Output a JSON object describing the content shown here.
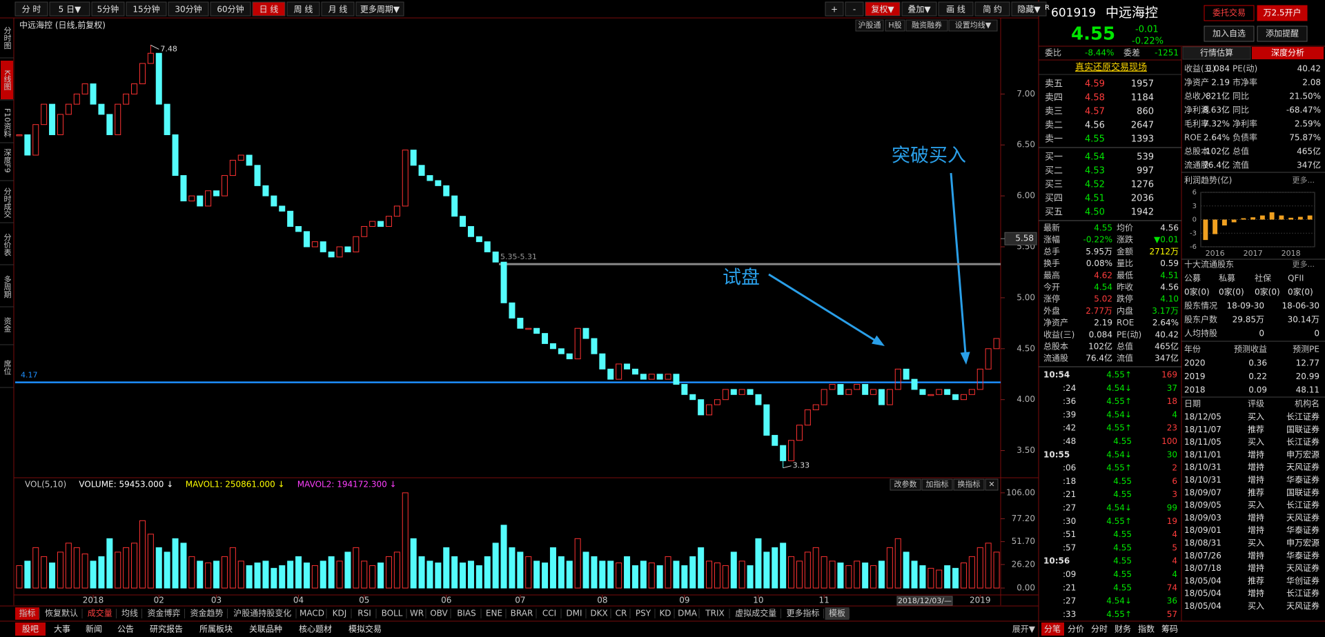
{
  "toolbar": {
    "left": [
      "分 时",
      "5 日▼",
      "5分钟",
      "15分钟",
      "30分钟",
      "60分钟",
      "日 线",
      "周 线",
      "月 线",
      "更多周期▼"
    ],
    "right": [
      "+",
      "-",
      "复权▼",
      "叠加▼",
      "画 线",
      "简 约",
      "隐藏▼"
    ]
  },
  "sidebar": [
    "分时图",
    "K线图",
    "F10资料",
    "深度F9",
    "分时成交",
    "分价表",
    "多周期",
    "资金",
    "席位"
  ],
  "chart_data": {
    "type": "candlestick",
    "title": "中远海控 (日线,前复权)",
    "categories": [
      null,
      null,
      null,
      null,
      null,
      null,
      null,
      null,
      null,
      "2018",
      null,
      null,
      null,
      null,
      null,
      null,
      null,
      "02",
      null,
      null,
      null,
      null,
      null,
      null,
      "03",
      null,
      null,
      null,
      null,
      null,
      null,
      null,
      null,
      null,
      "04",
      null,
      null,
      null,
      null,
      null,
      null,
      null,
      "05",
      null,
      null,
      null,
      null,
      null,
      null,
      null,
      null,
      null,
      "06",
      null,
      null,
      null,
      null,
      null,
      null,
      null,
      null,
      "07",
      null,
      null,
      null,
      null,
      null,
      null,
      null,
      null,
      null,
      "08",
      null,
      null,
      null,
      null,
      null,
      null,
      null,
      null,
      null,
      "09",
      null,
      null,
      null,
      null,
      null,
      null,
      null,
      null,
      "10",
      null,
      null,
      null,
      null,
      null,
      null,
      null,
      "11",
      null,
      null,
      null,
      null,
      null,
      null,
      null,
      null,
      null,
      null,
      null,
      null,
      null,
      null,
      null,
      null,
      null,
      null,
      "2019",
      null,
      null
    ],
    "close": [
      6.6,
      6.4,
      6.7,
      6.9,
      6.6,
      6.8,
      6.9,
      7.0,
      7.1,
      6.9,
      6.8,
      6.6,
      6.9,
      7.0,
      7.1,
      7.3,
      7.4,
      6.9,
      6.6,
      6.2,
      5.95,
      6.0,
      5.9,
      6.05,
      6.0,
      6.2,
      6.35,
      6.4,
      6.3,
      6.1,
      6.0,
      5.9,
      5.85,
      5.7,
      5.65,
      5.5,
      5.55,
      5.45,
      5.4,
      5.5,
      5.45,
      5.6,
      5.7,
      5.75,
      5.7,
      5.8,
      5.9,
      6.45,
      6.3,
      6.2,
      6.15,
      6.1,
      6.0,
      5.8,
      5.7,
      5.6,
      5.55,
      5.45,
      5.35,
      4.95,
      4.8,
      4.7,
      4.7,
      4.65,
      4.55,
      4.5,
      4.45,
      4.4,
      4.7,
      4.6,
      4.45,
      4.3,
      4.2,
      4.35,
      4.3,
      4.25,
      4.2,
      4.25,
      4.2,
      4.25,
      4.15,
      4.05,
      4.0,
      3.85,
      3.95,
      4.0,
      4.1,
      4.05,
      4.1,
      4.05,
      3.95,
      3.65,
      3.55,
      3.4,
      3.6,
      3.75,
      3.9,
      3.95,
      4.1,
      4.15,
      4.05,
      4.1,
      4.15,
      4.05,
      4.1,
      3.95,
      4.1,
      4.3,
      4.2,
      4.1,
      4.05,
      4.05,
      4.1,
      4.05,
      4.0,
      4.05,
      4.1,
      4.3,
      4.5,
      4.6
    ],
    "high": 7.48,
    "low": 3.33,
    "up_color": "#ff3232",
    "down_color": "#54fcfc",
    "ylim": [
      3.24,
      7.74
    ],
    "yticks": [
      {
        "value": 3.5,
        "label": "3.50"
      },
      {
        "value": 4.0,
        "label": "4.00"
      },
      {
        "value": 4.5,
        "label": "4.50"
      },
      {
        "value": 5.0,
        "label": "5.00"
      },
      {
        "value": 5.5,
        "label": "5.50"
      },
      {
        "value": 6.0,
        "label": "6.00"
      },
      {
        "value": 6.5,
        "label": "6.50"
      },
      {
        "value": 7.0,
        "label": "7.00"
      }
    ],
    "cursor_price": 5.58,
    "hlines": [
      {
        "value": 5.33,
        "label": "5.35-5.31",
        "color": "#8a8a8a"
      },
      {
        "value": 4.17,
        "color": "#1e8fff"
      }
    ],
    "buttons": [
      "沪股通",
      "H股",
      "融资融券",
      "设置均线▼"
    ],
    "annotations": [
      "试盘",
      "突破买入"
    ],
    "date_box": "2018/12/03/—",
    "volume": {
      "header": [
        "VOL(5,10)",
        "VOLUME: 59453.000 ↓",
        "MAVOL1: 250861.000 ↓",
        "MAVOL2: 194172.300 ↓"
      ],
      "header_colors": [
        "#c8c8c8",
        "#ffffff",
        "#ffff00",
        "#ff40ff"
      ],
      "buttons": [
        "改参数",
        "加指标",
        "换指标",
        "✕"
      ],
      "values": [
        25,
        30,
        45,
        35,
        28,
        40,
        50,
        45,
        38,
        30,
        35,
        55,
        40,
        45,
        50,
        75,
        60,
        45,
        40,
        55,
        50,
        35,
        30,
        28,
        30,
        35,
        45,
        30,
        25,
        28,
        30,
        22,
        25,
        30,
        35,
        28,
        25,
        30,
        35,
        30,
        40,
        45,
        30,
        25,
        28,
        35,
        40,
        106,
        55,
        35,
        30,
        28,
        45,
        35,
        28,
        30,
        25,
        35,
        50,
        70,
        45,
        40,
        35,
        30,
        28,
        45,
        35,
        30,
        55,
        40,
        35,
        30,
        30,
        28,
        35,
        25,
        30,
        28,
        25,
        35,
        30,
        25,
        35,
        45,
        30,
        28,
        25,
        40,
        30,
        25,
        55,
        40,
        45,
        50,
        35,
        30,
        40,
        45,
        35,
        30,
        28,
        25,
        30,
        28,
        25,
        30,
        45,
        55,
        40,
        30,
        25,
        22,
        20,
        25,
        22,
        28,
        35,
        45,
        50,
        40
      ],
      "ylim": [
        0,
        122
      ],
      "yticks": [
        {
          "value": 0,
          "label": "0.00"
        },
        {
          "value": 26.2,
          "label": "26.20"
        },
        {
          "value": 51.7,
          "label": "51.70"
        },
        {
          "value": 77.2,
          "label": "77.20"
        },
        {
          "value": 106,
          "label": "106.00"
        }
      ]
    }
  },
  "indicator_tabs": [
    "指标",
    "恢复默认",
    "成交量",
    "均线",
    "资金博弈",
    "资金趋势",
    "沪股通持股变化",
    "MACD",
    "KDJ",
    "RSI",
    "BOLL",
    "WR",
    "OBV",
    "BIAS",
    "ENE",
    "BRAR",
    "CCI",
    "DMI",
    "DKX",
    "CR",
    "PSY",
    "KD",
    "DMA",
    "TRIX",
    "虚拟成交量",
    "更多指标",
    "模板"
  ],
  "bottom_tabs": [
    "股吧",
    "大事",
    "新闻",
    "公告",
    "研究报告",
    "所属板块",
    "关联品种",
    "核心题材",
    "模拟交易"
  ],
  "expand": "展开▼",
  "bottom_right_tabs": [
    "分笔",
    "分价",
    "分时",
    "财务",
    "指数",
    "筹码"
  ],
  "quote": {
    "prefix": "R",
    "code": "601919",
    "name": "中远海控",
    "price": "4.55",
    "change": "-0.01",
    "pct": "-0.22%",
    "buttons": [
      "委托交易",
      "万2.5开户",
      "加入自选",
      "添加提醒"
    ],
    "weibi": [
      "委比",
      "-8.44%",
      "委差",
      "-1251"
    ],
    "tabs": [
      "行情估算",
      "深度分析"
    ],
    "book_title": "真实还原交易现场"
  },
  "order_book": {
    "sell": [
      [
        "卖五",
        "4.59",
        "1957"
      ],
      [
        "卖四",
        "4.58",
        "1184"
      ],
      [
        "卖三",
        "4.57",
        "860"
      ],
      [
        "卖二",
        "4.56",
        "2647"
      ],
      [
        "卖一",
        "4.55",
        "1393"
      ]
    ],
    "buy": [
      [
        "买一",
        "4.54",
        "539"
      ],
      [
        "买二",
        "4.53",
        "997"
      ],
      [
        "买三",
        "4.52",
        "1276"
      ],
      [
        "买四",
        "4.51",
        "2036"
      ],
      [
        "买五",
        "4.50",
        "1942"
      ]
    ]
  },
  "stats": [
    [
      "最新",
      "4.55",
      "均价",
      "4.56"
    ],
    [
      "涨幅",
      "-0.22%",
      "涨跌",
      "▼0.01"
    ],
    [
      "总手",
      "5.95万",
      "金额",
      "2712万"
    ],
    [
      "换手",
      "0.08%",
      "量比",
      "0.59"
    ],
    [
      "最高",
      "4.62",
      "最低",
      "4.51"
    ],
    [
      "今开",
      "4.54",
      "昨收",
      "4.56"
    ],
    [
      "涨停",
      "5.02",
      "跌停",
      "4.10"
    ],
    [
      "外盘",
      "2.77万",
      "内盘",
      "3.17万"
    ],
    [
      "净资产",
      "2.19",
      "ROE",
      "2.64%"
    ],
    [
      "收益(三)",
      "0.084",
      "PE(动)",
      "40.42"
    ],
    [
      "总股本",
      "102亿",
      "总值",
      "465亿"
    ],
    [
      "流通股",
      "76.4亿",
      "流值",
      "347亿"
    ]
  ],
  "ticks": [
    {
      "time": "10:54",
      "price": "4.55↑",
      "vol": "169",
      "color": "#ff3c3c"
    },
    {
      "time": ":24",
      "price": "4.54↓",
      "vol": "37",
      "color": "#00e600"
    },
    {
      "time": ":36",
      "price": "4.55↑",
      "vol": "18",
      "color": "#ff3c3c"
    },
    {
      "time": ":39",
      "price": "4.54↓",
      "vol": "4",
      "color": "#00e600"
    },
    {
      "time": ":42",
      "price": "4.55↑",
      "vol": "23",
      "color": "#ff3c3c"
    },
    {
      "time": ":48",
      "price": "4.55",
      "vol": "100",
      "color": "#ff3c3c"
    },
    {
      "time": "10:55",
      "price": "4.54↓",
      "vol": "30",
      "color": "#00e600"
    },
    {
      "time": ":06",
      "price": "4.55↑",
      "vol": "2",
      "color": "#ff3c3c"
    },
    {
      "time": ":18",
      "price": "4.55",
      "vol": "6",
      "color": "#ff3c3c"
    },
    {
      "time": ":21",
      "price": "4.55",
      "vol": "3",
      "color": "#ff3c3c"
    },
    {
      "time": ":27",
      "price": "4.54↓",
      "vol": "99",
      "color": "#00e600"
    },
    {
      "time": ":30",
      "price": "4.55↑",
      "vol": "19",
      "color": "#ff3c3c"
    },
    {
      "time": ":51",
      "price": "4.55",
      "vol": "4",
      "color": "#ff3c3c"
    },
    {
      "time": ":57",
      "price": "4.55",
      "vol": "5",
      "color": "#ff3c3c"
    },
    {
      "time": "10:56",
      "price": "4.55",
      "vol": "4",
      "color": "#ff3c3c"
    },
    {
      "time": ":09",
      "price": "4.55",
      "vol": "4",
      "color": "#00e600"
    },
    {
      "time": ":21",
      "price": "4.55",
      "vol": "74",
      "color": "#ff3c3c"
    },
    {
      "time": ":27",
      "price": "4.54↓",
      "vol": "36",
      "color": "#00e600"
    },
    {
      "time": ":33",
      "price": "4.55↑",
      "vol": "57",
      "color": "#ff3c3c"
    }
  ],
  "financials": [
    [
      "收益(三)",
      "0.084",
      "PE(动)",
      "40.42"
    ],
    [
      "净资产",
      "2.19",
      "市净率",
      "2.08"
    ],
    [
      "总收入",
      "821亿",
      "同比",
      "21.50%"
    ],
    [
      "净利润",
      "8.63亿",
      "同比",
      "-68.47%"
    ],
    [
      "毛利率",
      "7.32%",
      "净利率",
      "2.59%"
    ],
    [
      "ROE",
      "2.64%",
      "负债率",
      "75.87%"
    ],
    [
      "总股本",
      "102亿",
      "总值",
      "465亿"
    ],
    [
      "流通股",
      "76.4亿",
      "流值",
      "347亿"
    ]
  ],
  "profit_trend": {
    "type": "bar",
    "title": "利润趋势(亿)",
    "more": "更多...",
    "categories": [
      null,
      "2016",
      null,
      null,
      null,
      "2017",
      null,
      null,
      null,
      "2018",
      null,
      null
    ],
    "values": [
      -4.5,
      -3.2,
      -1.3,
      -0.6,
      0.3,
      0.5,
      0.9,
      1.6,
      0.9,
      0.4,
      0.6,
      0.9
    ],
    "color": "#f0a020",
    "ylim": [
      -6,
      6
    ],
    "yticks": [
      -6,
      -3,
      0,
      3,
      6
    ]
  },
  "holders": {
    "title": "十大流通股东",
    "more": "更多...",
    "header": [
      "公募",
      "私募",
      "社保",
      "QFII"
    ],
    "counts": [
      "0家(0)",
      "0家(0)",
      "0家(0)",
      "0家(0)"
    ],
    "rows": [
      [
        "股东情况",
        "18-09-30",
        "18-06-30"
      ],
      [
        "股东户数",
        "29.85万",
        "30.14万"
      ],
      [
        "人均持股",
        "0",
        "0"
      ]
    ]
  },
  "forecast": {
    "header": [
      "年份",
      "预测收益",
      "预测PE"
    ],
    "rows": [
      [
        "2020",
        "0.36",
        "12.77"
      ],
      [
        "2019",
        "0.22",
        "20.99"
      ],
      [
        "2018",
        "0.09",
        "48.11"
      ]
    ]
  },
  "research": {
    "header": [
      "日期",
      "评级",
      "机构名"
    ],
    "rows": [
      [
        "18/12/05",
        "买入",
        "长江证券"
      ],
      [
        "18/11/07",
        "推荐",
        "国联证券"
      ],
      [
        "18/11/05",
        "买入",
        "长江证券"
      ],
      [
        "18/11/01",
        "增持",
        "申万宏源"
      ],
      [
        "18/10/31",
        "增持",
        "天风证券"
      ],
      [
        "18/10/31",
        "增持",
        "华泰证券"
      ],
      [
        "18/09/07",
        "推荐",
        "国联证券"
      ],
      [
        "18/09/05",
        "买入",
        "长江证券"
      ],
      [
        "18/09/03",
        "增持",
        "天风证券"
      ],
      [
        "18/09/01",
        "增持",
        "华泰证券"
      ],
      [
        "18/08/31",
        "买入",
        "申万宏源"
      ],
      [
        "18/07/26",
        "增持",
        "华泰证券"
      ],
      [
        "18/07/18",
        "增持",
        "天风证券"
      ],
      [
        "18/05/04",
        "推荐",
        "华创证券"
      ],
      [
        "18/05/04",
        "增持",
        "长江证券"
      ],
      [
        "18/05/04",
        "买入",
        "天风证券"
      ]
    ]
  }
}
